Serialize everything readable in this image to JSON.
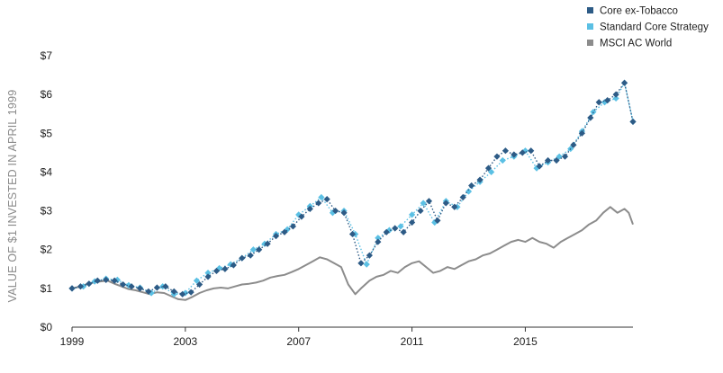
{
  "chart_data": {
    "type": "line",
    "ylabel": "VALUE OF $1 INVESTED IN APRIL 1999",
    "xlabel": "",
    "title": "",
    "xlim": [
      1999.0,
      2018.8
    ],
    "ylim": [
      0,
      7
    ],
    "x_ticks": [
      1999,
      2003,
      2007,
      2011,
      2015
    ],
    "x_tick_labels": [
      "1999",
      "2003",
      "2007",
      "2011",
      "2015"
    ],
    "y_ticks": [
      0,
      1,
      2,
      3,
      4,
      5,
      6,
      7
    ],
    "y_tick_labels": [
      "$0",
      "$1",
      "$2",
      "$3",
      "$4",
      "$5",
      "$6",
      "$7"
    ],
    "legend_position": "top-right",
    "series": [
      {
        "name": "Core ex-Tobacco",
        "color": "#2d5b86",
        "style": "dotted-line-diamond-markers",
        "x": [
          1999.0,
          1999.3,
          1999.6,
          1999.9,
          2000.2,
          2000.5,
          2000.8,
          2001.1,
          2001.4,
          2001.7,
          2002.0,
          2002.3,
          2002.6,
          2002.9,
          2003.2,
          2003.5,
          2003.8,
          2004.1,
          2004.4,
          2004.7,
          2005.0,
          2005.3,
          2005.6,
          2005.9,
          2006.2,
          2006.5,
          2006.8,
          2007.1,
          2007.4,
          2007.7,
          2008.0,
          2008.3,
          2008.6,
          2008.9,
          2009.2,
          2009.5,
          2009.8,
          2010.1,
          2010.4,
          2010.7,
          2011.0,
          2011.3,
          2011.6,
          2011.9,
          2012.2,
          2012.5,
          2012.8,
          2013.1,
          2013.4,
          2013.7,
          2014.0,
          2014.3,
          2014.6,
          2014.9,
          2015.2,
          2015.5,
          2015.8,
          2016.1,
          2016.4,
          2016.7,
          2017.0,
          2017.3,
          2017.6,
          2017.9,
          2018.2,
          2018.5,
          2018.8
        ],
        "values": [
          1.0,
          1.05,
          1.12,
          1.2,
          1.22,
          1.2,
          1.1,
          1.05,
          1.0,
          0.92,
          1.02,
          1.05,
          0.92,
          0.85,
          0.9,
          1.1,
          1.3,
          1.45,
          1.5,
          1.6,
          1.78,
          1.85,
          2.0,
          2.15,
          2.35,
          2.45,
          2.6,
          2.85,
          3.05,
          3.2,
          3.3,
          3.0,
          2.95,
          2.4,
          1.65,
          1.85,
          2.2,
          2.45,
          2.55,
          2.45,
          2.7,
          3.0,
          3.25,
          2.75,
          3.2,
          3.1,
          3.35,
          3.65,
          3.8,
          4.1,
          4.4,
          4.55,
          4.45,
          4.5,
          4.55,
          4.15,
          4.3,
          4.3,
          4.4,
          4.7,
          5.0,
          5.4,
          5.8,
          5.85,
          6.0,
          6.3,
          5.3
        ]
      },
      {
        "name": "Standard Core Strategy",
        "color": "#5bc0e4",
        "style": "dotted-line-diamond-markers",
        "x": [
          1999.0,
          1999.4,
          1999.8,
          2000.2,
          2000.6,
          2001.0,
          2001.4,
          2001.8,
          2002.2,
          2002.6,
          2003.0,
          2003.4,
          2003.8,
          2004.2,
          2004.6,
          2005.0,
          2005.4,
          2005.8,
          2006.2,
          2006.6,
          2007.0,
          2007.4,
          2007.8,
          2008.2,
          2008.6,
          2009.0,
          2009.4,
          2009.8,
          2010.2,
          2010.6,
          2011.0,
          2011.4,
          2011.8,
          2012.2,
          2012.6,
          2013.0,
          2013.4,
          2013.8,
          2014.2,
          2014.6,
          2015.0,
          2015.4,
          2015.8,
          2016.2,
          2016.6,
          2017.0,
          2017.4,
          2017.8,
          2018.2,
          2018.5,
          2018.8
        ],
        "values": [
          1.0,
          1.05,
          1.18,
          1.25,
          1.22,
          1.08,
          1.02,
          0.88,
          1.05,
          0.85,
          0.88,
          1.2,
          1.4,
          1.52,
          1.62,
          1.78,
          2.0,
          2.15,
          2.4,
          2.52,
          2.9,
          3.12,
          3.35,
          2.95,
          3.0,
          2.4,
          1.62,
          2.3,
          2.5,
          2.6,
          2.9,
          3.2,
          2.7,
          3.25,
          3.1,
          3.5,
          3.75,
          4.0,
          4.3,
          4.4,
          4.55,
          4.1,
          4.25,
          4.4,
          4.6,
          5.05,
          5.55,
          5.8,
          5.9,
          6.3,
          5.3
        ]
      },
      {
        "name": "MSCI AC World",
        "color": "#8c8c8c",
        "style": "solid-line",
        "x": [
          1999.0,
          1999.25,
          1999.5,
          1999.75,
          2000.0,
          2000.25,
          2000.5,
          2000.75,
          2001.0,
          2001.25,
          2001.5,
          2001.75,
          2002.0,
          2002.25,
          2002.5,
          2002.75,
          2003.0,
          2003.25,
          2003.5,
          2003.75,
          2004.0,
          2004.25,
          2004.5,
          2004.75,
          2005.0,
          2005.25,
          2005.5,
          2005.75,
          2006.0,
          2006.25,
          2006.5,
          2006.75,
          2007.0,
          2007.25,
          2007.5,
          2007.75,
          2008.0,
          2008.25,
          2008.5,
          2008.75,
          2009.0,
          2009.2,
          2009.5,
          2009.75,
          2010.0,
          2010.25,
          2010.5,
          2010.75,
          2011.0,
          2011.25,
          2011.5,
          2011.75,
          2012.0,
          2012.25,
          2012.5,
          2012.75,
          2013.0,
          2013.25,
          2013.5,
          2013.75,
          2014.0,
          2014.25,
          2014.5,
          2014.75,
          2015.0,
          2015.25,
          2015.5,
          2015.75,
          2016.0,
          2016.25,
          2016.5,
          2016.75,
          2017.0,
          2017.25,
          2017.5,
          2017.75,
          2018.0,
          2018.25,
          2018.5,
          2018.65,
          2018.8
        ],
        "values": [
          1.0,
          1.04,
          1.1,
          1.15,
          1.18,
          1.2,
          1.12,
          1.05,
          0.98,
          0.95,
          0.9,
          0.85,
          0.9,
          0.88,
          0.8,
          0.72,
          0.7,
          0.78,
          0.88,
          0.95,
          1.0,
          1.02,
          1.0,
          1.05,
          1.1,
          1.12,
          1.15,
          1.2,
          1.28,
          1.32,
          1.35,
          1.42,
          1.5,
          1.6,
          1.7,
          1.8,
          1.75,
          1.65,
          1.55,
          1.1,
          0.85,
          1.0,
          1.2,
          1.3,
          1.35,
          1.45,
          1.4,
          1.55,
          1.65,
          1.7,
          1.55,
          1.4,
          1.45,
          1.55,
          1.5,
          1.6,
          1.7,
          1.75,
          1.85,
          1.9,
          2.0,
          2.1,
          2.2,
          2.25,
          2.2,
          2.3,
          2.2,
          2.15,
          2.05,
          2.2,
          2.3,
          2.4,
          2.5,
          2.65,
          2.75,
          2.95,
          3.1,
          2.95,
          3.05,
          2.95,
          2.65
        ]
      }
    ]
  }
}
